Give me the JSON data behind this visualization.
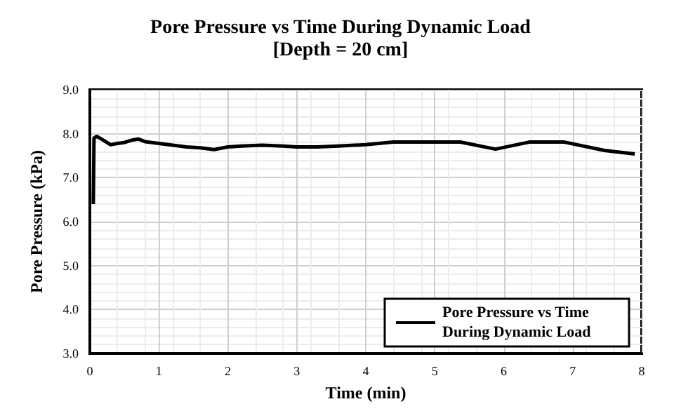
{
  "chart_data": {
    "type": "line",
    "title": "Pore Pressure vs Time During Dynamic Load",
    "subtitle": "[Depth = 20 cm]",
    "xlabel": "Time (min)",
    "ylabel": "Pore Pressure (kPa)",
    "xlim": [
      0,
      8
    ],
    "xticks": [
      0,
      1,
      2,
      3,
      4,
      5,
      6,
      7,
      8
    ],
    "ylim": [
      3,
      9
    ],
    "yticks": [
      {
        "value": 3,
        "label": "3.0"
      },
      {
        "value": 4,
        "label": "4.0"
      },
      {
        "value": 5,
        "label": "5.0"
      },
      {
        "value": 6,
        "label": "6.0"
      },
      {
        "value": 7,
        "label": "7.0"
      },
      {
        "value": 8,
        "label": "8.0"
      },
      {
        "value": 9,
        "label": "9.0"
      }
    ],
    "grid": true,
    "legend": "bottom right",
    "marker": "none",
    "line_style": "solid",
    "series": [
      {
        "name": "Pore Pressure vs Time During Dynamic Load",
        "color": "#000000",
        "x": [
          0.05,
          0.06,
          0.1,
          0.2,
          0.3,
          0.4,
          0.5,
          0.6,
          0.7,
          0.8,
          0.9,
          1.0,
          1.2,
          1.4,
          1.6,
          1.8,
          2.0,
          2.2,
          2.5,
          2.8,
          3.0,
          3.3,
          3.6,
          4.0,
          4.4,
          5.37,
          5.88,
          6.37,
          6.88,
          7.46,
          7.9
        ],
        "values": [
          6.4,
          7.9,
          7.94,
          7.85,
          7.75,
          7.78,
          7.8,
          7.85,
          7.88,
          7.82,
          7.8,
          7.78,
          7.74,
          7.7,
          7.68,
          7.64,
          7.7,
          7.72,
          7.74,
          7.72,
          7.7,
          7.7,
          7.72,
          7.75,
          7.81,
          7.81,
          7.65,
          7.81,
          7.81,
          7.62,
          7.54
        ]
      }
    ]
  }
}
